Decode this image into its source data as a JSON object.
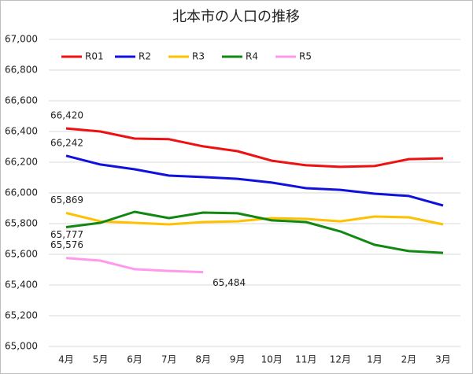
{
  "chart_data": {
    "type": "line",
    "title": "北本市の人口の推移",
    "categories": [
      "4月",
      "5月",
      "6月",
      "7月",
      "8月",
      "9月",
      "10月",
      "11月",
      "12月",
      "1月",
      "2月",
      "3月"
    ],
    "series": [
      {
        "name": "R01",
        "color": "#ee1111",
        "values": [
          66420,
          66400,
          66354,
          66350,
          66303,
          66272,
          66210,
          66180,
          66170,
          66175,
          66220,
          66225
        ],
        "value_labels": [
          "66,420",
          null,
          null,
          null,
          null,
          null,
          null,
          null,
          null,
          null,
          null,
          null
        ]
      },
      {
        "name": "R2",
        "color": "#1111dd",
        "values": [
          66242,
          66185,
          66154,
          66113,
          66103,
          66092,
          66067,
          66031,
          66020,
          65995,
          65980,
          65918
        ],
        "value_labels": [
          "66,242",
          null,
          null,
          null,
          null,
          null,
          null,
          null,
          null,
          null,
          null,
          null
        ]
      },
      {
        "name": "R3",
        "color": "#ffc000",
        "values": [
          65869,
          65815,
          65805,
          65795,
          65810,
          65815,
          65836,
          65831,
          65815,
          65846,
          65841,
          65795
        ],
        "value_labels": [
          "65,869",
          null,
          null,
          null,
          null,
          null,
          null,
          null,
          null,
          null,
          null,
          null
        ]
      },
      {
        "name": "R4",
        "color": "#118811",
        "values": [
          65777,
          65805,
          65877,
          65836,
          65872,
          65867,
          65821,
          65810,
          65749,
          65662,
          65621,
          65610
        ],
        "value_labels": [
          "65,777",
          null,
          null,
          null,
          null,
          null,
          null,
          null,
          null,
          null,
          null,
          null
        ]
      },
      {
        "name": "R5",
        "color": "#ff99ee",
        "values": [
          65576,
          65559,
          65503,
          65492,
          65484,
          null,
          null,
          null,
          null,
          null,
          null,
          null
        ],
        "value_labels": [
          "65,576",
          null,
          null,
          null,
          "65,484",
          null,
          null,
          null,
          null,
          null,
          null,
          null
        ]
      }
    ],
    "ylim": [
      65000,
      67000
    ],
    "yticks": [
      {
        "value": 65000,
        "label": "65,000"
      },
      {
        "value": 65200,
        "label": "65,200"
      },
      {
        "value": 65400,
        "label": "65,400"
      },
      {
        "value": 65600,
        "label": "65,600"
      },
      {
        "value": 65800,
        "label": "65,800"
      },
      {
        "value": 66000,
        "label": "66,000"
      },
      {
        "value": 66200,
        "label": "66,200"
      },
      {
        "value": 66400,
        "label": "66,400"
      },
      {
        "value": 66600,
        "label": "66,600"
      },
      {
        "value": 66800,
        "label": "66,800"
      },
      {
        "value": 67000,
        "label": "67,000"
      }
    ],
    "grid": true,
    "legend": "top-left"
  }
}
